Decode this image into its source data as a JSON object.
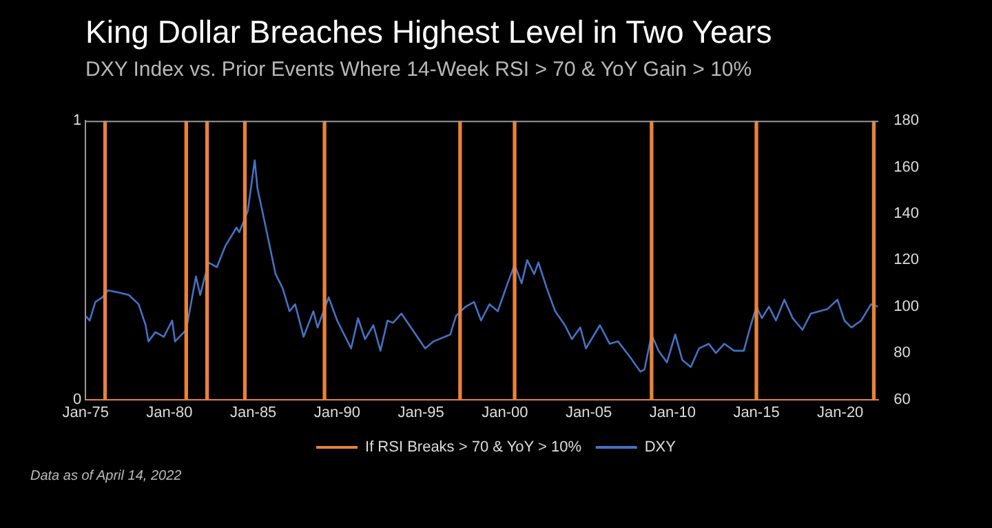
{
  "chart_data": {
    "type": "line",
    "title": "King Dollar Breaches Highest Level in Two Years",
    "subtitle": "DXY Index vs. Prior Events Where 14-Week RSI > 70 & YoY Gain > 10%",
    "annotations": [
      "Data as of April 14, 2022"
    ],
    "series": [
      {
        "name": "If RSI Breaks > 70 & YoY > 10%",
        "type": "bar",
        "axis": "y",
        "color": "#e8823a",
        "x": [
          "1976-03",
          "1981-01",
          "1982-04",
          "1984-07",
          "1989-04",
          "1997-05",
          "2000-08",
          "2008-10",
          "2015-01",
          "2022-01"
        ],
        "values": [
          1,
          1,
          1,
          1,
          1,
          1,
          1,
          1,
          1,
          1
        ]
      },
      {
        "name": "DXY",
        "axis": "y2",
        "color": "#4472c4",
        "x": [
          "1975-01",
          "1975-04",
          "1975-08",
          "1976-01",
          "1976-05",
          "1977-01",
          "1977-08",
          "1978-03",
          "1978-08",
          "1978-10",
          "1979-03",
          "1979-09",
          "1980-03",
          "1980-05",
          "1981-01",
          "1981-08",
          "1981-11",
          "1982-05",
          "1982-11",
          "1983-05",
          "1984-01",
          "1984-03",
          "1984-09",
          "1985-02",
          "1985-04",
          "1985-10",
          "1986-05",
          "1986-10",
          "1987-03",
          "1987-07",
          "1988-01",
          "1988-08",
          "1988-11",
          "1989-07",
          "1990-01",
          "1990-11",
          "1991-04",
          "1991-09",
          "1992-03",
          "1992-08",
          "1993-01",
          "1993-05",
          "1993-11",
          "1994-07",
          "1995-04",
          "1995-10",
          "1996-10",
          "1997-02",
          "1997-09",
          "1998-03",
          "1998-08",
          "1999-02",
          "1999-08",
          "2000-03",
          "2000-08",
          "2001-01",
          "2001-05",
          "2001-10",
          "2002-01",
          "2002-07",
          "2003-01",
          "2003-08",
          "2004-01",
          "2004-07",
          "2004-11",
          "2005-09",
          "2006-04",
          "2006-10",
          "2007-07",
          "2008-02",
          "2008-05",
          "2008-10",
          "2009-03",
          "2009-09",
          "2010-03",
          "2010-08",
          "2011-02",
          "2011-08",
          "2012-03",
          "2012-08",
          "2013-02",
          "2013-09",
          "2014-04",
          "2014-09",
          "2015-01",
          "2015-05",
          "2015-10",
          "2016-03",
          "2016-09",
          "2017-03",
          "2017-10",
          "2018-04",
          "2019-04",
          "2019-11",
          "2020-04",
          "2020-09",
          "2021-04",
          "2021-11",
          "2022-04"
        ],
        "values": [
          96,
          94,
          102,
          104,
          107,
          106,
          105,
          101,
          92,
          85,
          89,
          87,
          94,
          85,
          90,
          113,
          105,
          119,
          117,
          126,
          134,
          132,
          141,
          163,
          151,
          134,
          114,
          108,
          98,
          101,
          87,
          98,
          91,
          104,
          94,
          82,
          95,
          86,
          92,
          81,
          94,
          93,
          97,
          90,
          82,
          85,
          88,
          96,
          100,
          102,
          94,
          101,
          98,
          110,
          118,
          110,
          120,
          114,
          119,
          108,
          98,
          92,
          86,
          91,
          82,
          92,
          84,
          85,
          78,
          72,
          73,
          88,
          81,
          76,
          88,
          77,
          74,
          82,
          84,
          80,
          84,
          81,
          81,
          92,
          100,
          95,
          100,
          94,
          103,
          95,
          90,
          97,
          99,
          103,
          94,
          91,
          94,
          101,
          100
        ]
      }
    ],
    "xlim": [
      "1975-01",
      "2022-04-14"
    ],
    "xticks": [
      {
        "value": "1975-01",
        "label": "Jan-75"
      },
      {
        "value": "1980-01",
        "label": "Jan-80"
      },
      {
        "value": "1985-01",
        "label": "Jan-85"
      },
      {
        "value": "1990-01",
        "label": "Jan-90"
      },
      {
        "value": "1995-01",
        "label": "Jan-95"
      },
      {
        "value": "2000-01",
        "label": "Jan-00"
      },
      {
        "value": "2005-01",
        "label": "Jan-05"
      },
      {
        "value": "2010-01",
        "label": "Jan-10"
      },
      {
        "value": "2015-01",
        "label": "Jan-15"
      },
      {
        "value": "2020-01",
        "label": "Jan-20"
      }
    ],
    "ylim": [
      0,
      1
    ],
    "yticks": [
      0,
      1
    ],
    "y2lim": [
      60,
      180
    ],
    "y2ticks": [
      60,
      80,
      100,
      120,
      140,
      160,
      180
    ],
    "grid": false,
    "legend": "bottom",
    "line_style": "solid",
    "marker": "none"
  }
}
